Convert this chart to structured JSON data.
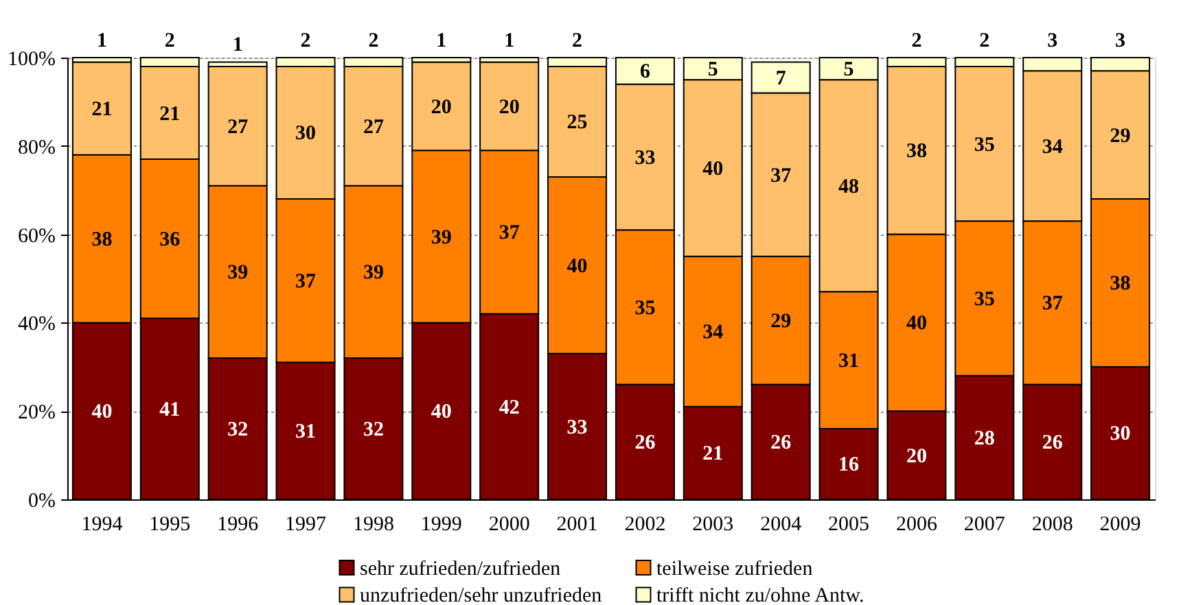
{
  "chart_data": {
    "type": "bar",
    "stacked": true,
    "categories": [
      "1994",
      "1995",
      "1996",
      "1997",
      "1998",
      "1999",
      "2000",
      "2001",
      "2002",
      "2003",
      "2004",
      "2005",
      "2006",
      "2007",
      "2008",
      "2009"
    ],
    "series": [
      {
        "name": "sehr zufrieden/zufrieden",
        "color": "#800000",
        "values": [
          40,
          41,
          32,
          31,
          32,
          40,
          42,
          33,
          26,
          21,
          26,
          16,
          20,
          28,
          26,
          30
        ]
      },
      {
        "name": "teilweise zufrieden",
        "color": "#ff8000",
        "values": [
          38,
          36,
          39,
          37,
          39,
          39,
          37,
          40,
          35,
          34,
          29,
          31,
          40,
          35,
          37,
          38
        ]
      },
      {
        "name": "unzufrieden/sehr unzufrieden",
        "color": "#ffc06c",
        "values": [
          21,
          21,
          27,
          30,
          27,
          20,
          20,
          25,
          33,
          40,
          37,
          48,
          38,
          35,
          34,
          29
        ]
      },
      {
        "name": "trifft nicht zu/ohne Antw.",
        "color": "#ffffcc",
        "values": [
          1,
          2,
          1,
          2,
          2,
          1,
          1,
          2,
          6,
          5,
          7,
          5,
          2,
          2,
          3,
          3
        ]
      }
    ],
    "ylim": [
      0,
      100
    ],
    "yticks": [
      {
        "value": 0,
        "label": "0%"
      },
      {
        "value": 20,
        "label": "20%"
      },
      {
        "value": 40,
        "label": "40%"
      },
      {
        "value": 60,
        "label": "60%"
      },
      {
        "value": 80,
        "label": "80%"
      },
      {
        "value": 100,
        "label": "100%"
      }
    ],
    "grid": "y",
    "legend": "bottom",
    "data_labels": true
  }
}
